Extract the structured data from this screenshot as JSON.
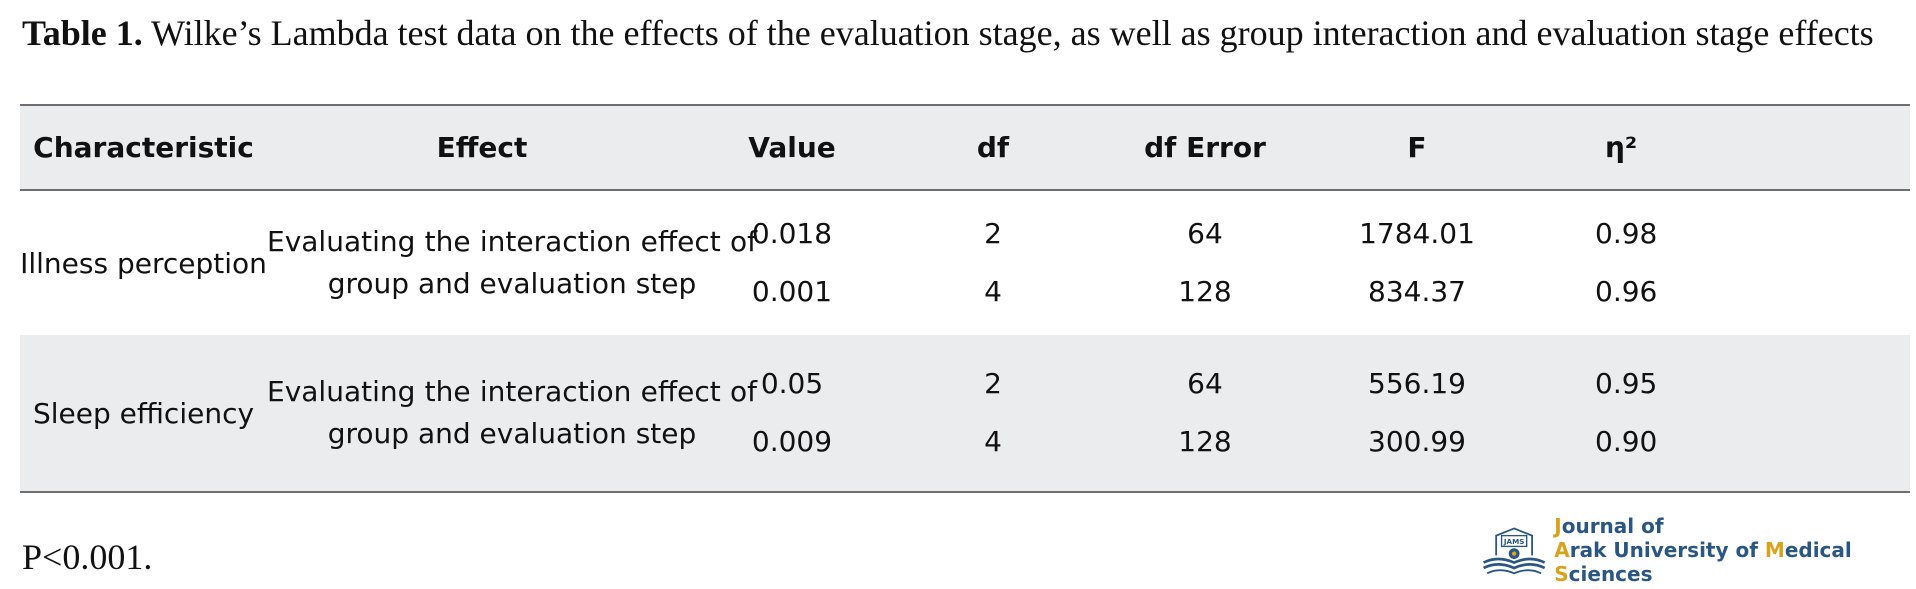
{
  "caption": {
    "label": "Table 1.",
    "text": "Wilke’s Lambda test data on the effects of the evaluation stage, as well as group interaction and evaluation stage effects"
  },
  "table": {
    "headers": [
      "Characteristic",
      "Effect",
      "Value",
      "df",
      "df Error",
      "F",
      "η²"
    ],
    "rows": [
      {
        "characteristic": "Illness perception",
        "effect_line1": "Evaluating the interaction effect of",
        "effect_line2": "group and evaluation step",
        "value": [
          "0.018",
          "0.001"
        ],
        "df": [
          "2",
          "4"
        ],
        "df_error": [
          "64",
          "128"
        ],
        "f": [
          "1784.01",
          "834.37"
        ],
        "eta2": [
          "0.98",
          "0.96"
        ]
      },
      {
        "characteristic": "Sleep efficiency",
        "effect_line1": "Evaluating the interaction effect of",
        "effect_line2": "group and evaluation step",
        "value": [
          "0.05",
          "0.009"
        ],
        "df": [
          "2",
          "4"
        ],
        "df_error": [
          "64",
          "128"
        ],
        "f": [
          "556.19",
          "300.99"
        ],
        "eta2": [
          "0.95",
          "0.90"
        ]
      }
    ]
  },
  "footnote": "P<0.001.",
  "logo": {
    "emblem_text": "JAMS",
    "line1_first": "J",
    "line1_rest": "ournal of",
    "line2_first": "A",
    "line2_part1": "rak University of ",
    "line2_m": "M",
    "line2_part2": "edical ",
    "line2_s": "S",
    "line2_part3": "ciences"
  },
  "colors": {
    "header_bg": "#ebecee",
    "rule": "#6e6e6e",
    "logo_blue": "#2a5683",
    "logo_gold": "#d9a21c"
  }
}
